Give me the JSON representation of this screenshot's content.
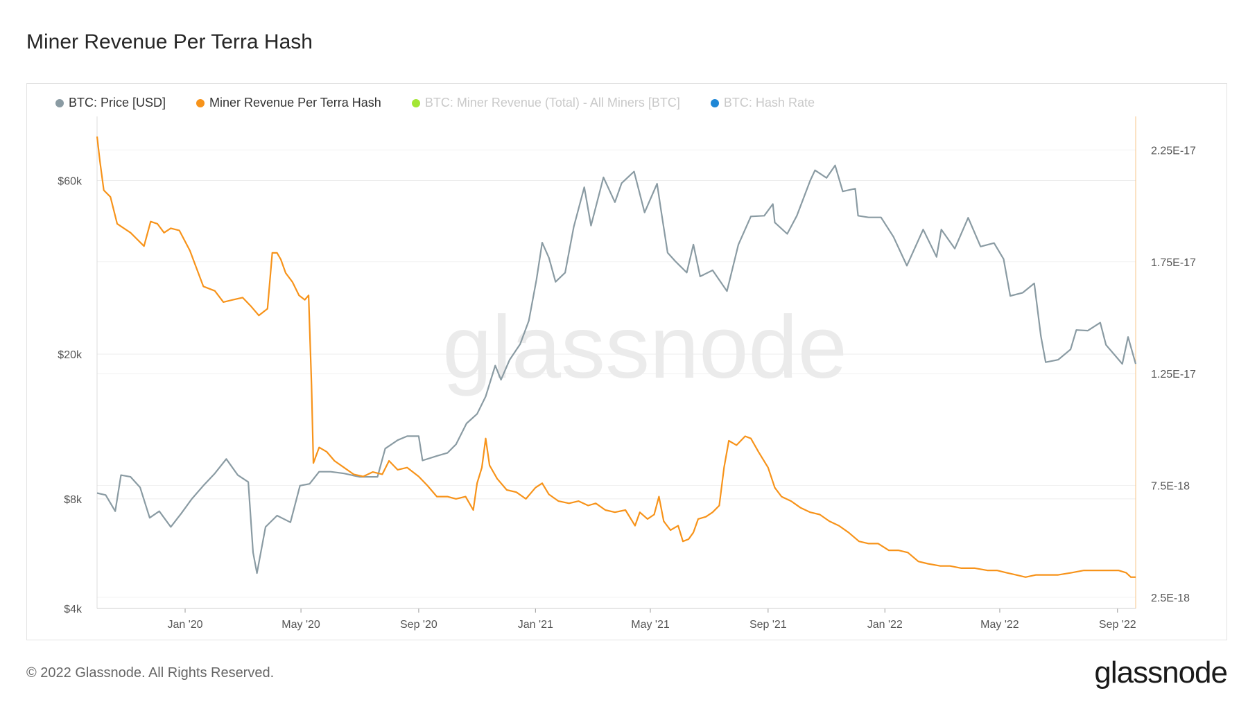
{
  "title": "Miner Revenue Per Terra Hash",
  "footer": {
    "copyright": "© 2022 Glassnode. All Rights Reserved.",
    "logo": "glassnode"
  },
  "watermark": "glassnode",
  "colors": {
    "price": "#8a9ba3",
    "revenue": "#f7931a",
    "total": "#a3e635",
    "hashrate": "#1f87d6"
  },
  "legend": [
    {
      "label": "BTC: Price [USD]",
      "color": "#8a9ba3",
      "active": true
    },
    {
      "label": "Miner Revenue Per Terra Hash",
      "color": "#f7931a",
      "active": true
    },
    {
      "label": "BTC: Miner Revenue (Total) - All Miners [BTC]",
      "color": "#a3e635",
      "active": false
    },
    {
      "label": "BTC: Hash Rate",
      "color": "#1f87d6",
      "active": false
    }
  ],
  "chart_data": {
    "type": "line",
    "x_range": [
      "2019-10-01",
      "2022-09-20"
    ],
    "x_ticks": [
      "Jan '20",
      "May '20",
      "Sep '20",
      "Jan '21",
      "May '21",
      "Sep '21",
      "Jan '22",
      "May '22",
      "Sep '22"
    ],
    "left_axis": {
      "scale": "log",
      "ticks": [
        "$4k",
        "$8k",
        "$20k",
        "$60k"
      ],
      "tick_values": [
        4000,
        8000,
        20000,
        60000
      ],
      "range": [
        4000,
        90000
      ]
    },
    "right_axis": {
      "scale": "linear",
      "ticks": [
        "2.5E-18",
        "7.5E-18",
        "1.25E-17",
        "1.75E-17",
        "2.25E-17"
      ],
      "tick_values": [
        2.5e-18,
        7.5e-18,
        1.25e-17,
        1.75e-17,
        2.25e-17
      ],
      "range": [
        2e-18,
        2.4e-17
      ]
    },
    "grid": true,
    "legend_position": "top-left",
    "series": [
      {
        "name": "BTC: Price [USD]",
        "axis": "left",
        "points": [
          [
            "2019-10-01",
            8300
          ],
          [
            "2019-10-10",
            8200
          ],
          [
            "2019-10-20",
            7400
          ],
          [
            "2019-10-26",
            9300
          ],
          [
            "2019-11-05",
            9200
          ],
          [
            "2019-11-15",
            8600
          ],
          [
            "2019-11-25",
            7100
          ],
          [
            "2019-12-05",
            7400
          ],
          [
            "2019-12-17",
            6700
          ],
          [
            "2019-12-28",
            7300
          ],
          [
            "2020-01-08",
            8000
          ],
          [
            "2020-01-20",
            8700
          ],
          [
            "2020-02-01",
            9400
          ],
          [
            "2020-02-13",
            10300
          ],
          [
            "2020-02-25",
            9300
          ],
          [
            "2020-03-07",
            8900
          ],
          [
            "2020-03-12",
            5700
          ],
          [
            "2020-03-16",
            5000
          ],
          [
            "2020-03-25",
            6700
          ],
          [
            "2020-04-06",
            7200
          ],
          [
            "2020-04-20",
            6900
          ],
          [
            "2020-04-30",
            8700
          ],
          [
            "2020-05-10",
            8800
          ],
          [
            "2020-05-20",
            9500
          ],
          [
            "2020-06-01",
            9500
          ],
          [
            "2020-06-15",
            9400
          ],
          [
            "2020-07-01",
            9200
          ],
          [
            "2020-07-20",
            9200
          ],
          [
            "2020-07-28",
            11000
          ],
          [
            "2020-08-10",
            11600
          ],
          [
            "2020-08-20",
            11900
          ],
          [
            "2020-09-01",
            11900
          ],
          [
            "2020-09-05",
            10200
          ],
          [
            "2020-09-20",
            10500
          ],
          [
            "2020-10-01",
            10700
          ],
          [
            "2020-10-10",
            11300
          ],
          [
            "2020-10-21",
            12900
          ],
          [
            "2020-11-01",
            13700
          ],
          [
            "2020-11-10",
            15300
          ],
          [
            "2020-11-20",
            18600
          ],
          [
            "2020-11-26",
            17000
          ],
          [
            "2020-12-05",
            19300
          ],
          [
            "2020-12-16",
            21300
          ],
          [
            "2020-12-25",
            24700
          ],
          [
            "2021-01-02",
            32000
          ],
          [
            "2021-01-08",
            40500
          ],
          [
            "2021-01-15",
            36800
          ],
          [
            "2021-01-22",
            31600
          ],
          [
            "2021-02-01",
            33500
          ],
          [
            "2021-02-10",
            44800
          ],
          [
            "2021-02-21",
            57500
          ],
          [
            "2021-02-28",
            45100
          ],
          [
            "2021-03-13",
            61200
          ],
          [
            "2021-03-25",
            52300
          ],
          [
            "2021-04-01",
            59000
          ],
          [
            "2021-04-14",
            63500
          ],
          [
            "2021-04-25",
            49000
          ],
          [
            "2021-05-08",
            58800
          ],
          [
            "2021-05-12",
            50000
          ],
          [
            "2021-05-19",
            38000
          ],
          [
            "2021-05-27",
            36000
          ],
          [
            "2021-06-08",
            33500
          ],
          [
            "2021-06-15",
            40000
          ],
          [
            "2021-06-22",
            32700
          ],
          [
            "2021-07-05",
            34000
          ],
          [
            "2021-07-20",
            29800
          ],
          [
            "2021-08-01",
            40000
          ],
          [
            "2021-08-14",
            47800
          ],
          [
            "2021-08-28",
            48000
          ],
          [
            "2021-09-06",
            51700
          ],
          [
            "2021-09-08",
            46000
          ],
          [
            "2021-09-21",
            42800
          ],
          [
            "2021-10-01",
            48000
          ],
          [
            "2021-10-15",
            60000
          ],
          [
            "2021-10-20",
            64000
          ],
          [
            "2021-11-01",
            61000
          ],
          [
            "2021-11-10",
            66000
          ],
          [
            "2021-11-18",
            56000
          ],
          [
            "2021-12-01",
            57000
          ],
          [
            "2021-12-04",
            48000
          ],
          [
            "2021-12-15",
            47500
          ],
          [
            "2021-12-28",
            47500
          ],
          [
            "2022-01-10",
            42000
          ],
          [
            "2022-01-24",
            35000
          ],
          [
            "2022-02-10",
            44000
          ],
          [
            "2022-02-24",
            37000
          ],
          [
            "2022-03-01",
            44000
          ],
          [
            "2022-03-15",
            39000
          ],
          [
            "2022-03-29",
            47400
          ],
          [
            "2022-04-11",
            39500
          ],
          [
            "2022-04-25",
            40400
          ],
          [
            "2022-05-05",
            36500
          ],
          [
            "2022-05-12",
            28900
          ],
          [
            "2022-05-25",
            29500
          ],
          [
            "2022-06-06",
            31300
          ],
          [
            "2022-06-13",
            22400
          ],
          [
            "2022-06-18",
            19000
          ],
          [
            "2022-07-01",
            19300
          ],
          [
            "2022-07-14",
            20600
          ],
          [
            "2022-07-20",
            23300
          ],
          [
            "2022-08-01",
            23200
          ],
          [
            "2022-08-14",
            24400
          ],
          [
            "2022-08-20",
            21200
          ],
          [
            "2022-09-06",
            18800
          ],
          [
            "2022-09-12",
            22300
          ],
          [
            "2022-09-20",
            18800
          ]
        ]
      },
      {
        "name": "Miner Revenue Per Terra Hash",
        "axis": "right",
        "points": [
          [
            "2019-10-01",
            2.31e-17
          ],
          [
            "2019-10-04",
            2.2e-17
          ],
          [
            "2019-10-08",
            2.07e-17
          ],
          [
            "2019-10-15",
            2.04e-17
          ],
          [
            "2019-10-22",
            1.92e-17
          ],
          [
            "2019-10-29",
            1.9e-17
          ],
          [
            "2019-11-05",
            1.88e-17
          ],
          [
            "2019-11-12",
            1.85e-17
          ],
          [
            "2019-11-19",
            1.82e-17
          ],
          [
            "2019-11-26",
            1.93e-17
          ],
          [
            "2019-12-03",
            1.92e-17
          ],
          [
            "2019-12-10",
            1.88e-17
          ],
          [
            "2019-12-17",
            1.9e-17
          ],
          [
            "2019-12-26",
            1.89e-17
          ],
          [
            "2020-01-06",
            1.8e-17
          ],
          [
            "2020-01-13",
            1.72e-17
          ],
          [
            "2020-01-20",
            1.64e-17
          ],
          [
            "2020-02-01",
            1.62e-17
          ],
          [
            "2020-02-10",
            1.57e-17
          ],
          [
            "2020-02-20",
            1.58e-17
          ],
          [
            "2020-03-01",
            1.59e-17
          ],
          [
            "2020-03-10",
            1.55e-17
          ],
          [
            "2020-03-18",
            1.51e-17
          ],
          [
            "2020-03-27",
            1.54e-17
          ],
          [
            "2020-04-01",
            1.79e-17
          ],
          [
            "2020-04-06",
            1.79e-17
          ],
          [
            "2020-04-10",
            1.76e-17
          ],
          [
            "2020-04-15",
            1.7e-17
          ],
          [
            "2020-04-22",
            1.66e-17
          ],
          [
            "2020-04-29",
            1.6e-17
          ],
          [
            "2020-05-05",
            1.58e-17
          ],
          [
            "2020-05-09",
            1.6e-17
          ],
          [
            "2020-05-12",
            1.2e-17
          ],
          [
            "2020-05-14",
            8.5e-18
          ],
          [
            "2020-05-20",
            9.2e-18
          ],
          [
            "2020-05-28",
            9e-18
          ],
          [
            "2020-06-05",
            8.6e-18
          ],
          [
            "2020-06-15",
            8.3e-18
          ],
          [
            "2020-06-25",
            8e-18
          ],
          [
            "2020-07-05",
            7.9e-18
          ],
          [
            "2020-07-15",
            8.1e-18
          ],
          [
            "2020-07-25",
            8e-18
          ],
          [
            "2020-08-01",
            8.6e-18
          ],
          [
            "2020-08-10",
            8.2e-18
          ],
          [
            "2020-08-20",
            8.3e-18
          ],
          [
            "2020-09-01",
            7.9e-18
          ],
          [
            "2020-09-10",
            7.5e-18
          ],
          [
            "2020-09-20",
            7e-18
          ],
          [
            "2020-10-01",
            7e-18
          ],
          [
            "2020-10-10",
            6.9e-18
          ],
          [
            "2020-10-20",
            7e-18
          ],
          [
            "2020-10-28",
            6.4e-18
          ],
          [
            "2020-11-01",
            7.6e-18
          ],
          [
            "2020-11-06",
            8.3e-18
          ],
          [
            "2020-11-10",
            9.6e-18
          ],
          [
            "2020-11-14",
            8.4e-18
          ],
          [
            "2020-11-22",
            7.8e-18
          ],
          [
            "2020-12-02",
            7.3e-18
          ],
          [
            "2020-12-12",
            7.2e-18
          ],
          [
            "2020-12-22",
            6.9e-18
          ],
          [
            "2021-01-01",
            7.4e-18
          ],
          [
            "2021-01-08",
            7.6e-18
          ],
          [
            "2021-01-15",
            7.1e-18
          ],
          [
            "2021-01-25",
            6.8e-18
          ],
          [
            "2021-02-05",
            6.7e-18
          ],
          [
            "2021-02-15",
            6.8e-18
          ],
          [
            "2021-02-25",
            6.6e-18
          ],
          [
            "2021-03-05",
            6.7e-18
          ],
          [
            "2021-03-15",
            6.4e-18
          ],
          [
            "2021-03-25",
            6.3e-18
          ],
          [
            "2021-04-05",
            6.4e-18
          ],
          [
            "2021-04-15",
            5.7e-18
          ],
          [
            "2021-04-20",
            6.3e-18
          ],
          [
            "2021-04-28",
            6e-18
          ],
          [
            "2021-05-05",
            6.2e-18
          ],
          [
            "2021-05-10",
            7e-18
          ],
          [
            "2021-05-15",
            5.9e-18
          ],
          [
            "2021-05-22",
            5.5e-18
          ],
          [
            "2021-05-30",
            5.7e-18
          ],
          [
            "2021-06-04",
            5e-18
          ],
          [
            "2021-06-10",
            5.1e-18
          ],
          [
            "2021-06-15",
            5.4e-18
          ],
          [
            "2021-06-20",
            6e-18
          ],
          [
            "2021-06-28",
            6.1e-18
          ],
          [
            "2021-07-05",
            6.3e-18
          ],
          [
            "2021-07-12",
            6.6e-18
          ],
          [
            "2021-07-17",
            8.3e-18
          ],
          [
            "2021-07-22",
            9.5e-18
          ],
          [
            "2021-07-30",
            9.3e-18
          ],
          [
            "2021-08-08",
            9.7e-18
          ],
          [
            "2021-08-14",
            9.6e-18
          ],
          [
            "2021-08-22",
            9e-18
          ],
          [
            "2021-09-01",
            8.3e-18
          ],
          [
            "2021-09-08",
            7.4e-18
          ],
          [
            "2021-09-15",
            7e-18
          ],
          [
            "2021-09-25",
            6.8e-18
          ],
          [
            "2021-10-05",
            6.5e-18
          ],
          [
            "2021-10-15",
            6.3e-18
          ],
          [
            "2021-10-25",
            6.2e-18
          ],
          [
            "2021-11-04",
            5.9e-18
          ],
          [
            "2021-11-14",
            5.7e-18
          ],
          [
            "2021-11-24",
            5.4e-18
          ],
          [
            "2021-12-05",
            5e-18
          ],
          [
            "2021-12-15",
            4.9e-18
          ],
          [
            "2021-12-25",
            4.9e-18
          ],
          [
            "2022-01-05",
            4.6e-18
          ],
          [
            "2022-01-15",
            4.6e-18
          ],
          [
            "2022-01-25",
            4.5e-18
          ],
          [
            "2022-02-05",
            4.1e-18
          ],
          [
            "2022-02-15",
            4e-18
          ],
          [
            "2022-02-28",
            3.9e-18
          ],
          [
            "2022-03-10",
            3.9e-18
          ],
          [
            "2022-03-22",
            3.8e-18
          ],
          [
            "2022-04-05",
            3.8e-18
          ],
          [
            "2022-04-18",
            3.7e-18
          ],
          [
            "2022-04-28",
            3.7e-18
          ],
          [
            "2022-05-08",
            3.6e-18
          ],
          [
            "2022-05-18",
            3.5e-18
          ],
          [
            "2022-05-28",
            3.4e-18
          ],
          [
            "2022-06-08",
            3.5e-18
          ],
          [
            "2022-06-20",
            3.5e-18
          ],
          [
            "2022-07-01",
            3.5e-18
          ],
          [
            "2022-07-15",
            3.6e-18
          ],
          [
            "2022-07-28",
            3.7e-18
          ],
          [
            "2022-08-10",
            3.7e-18
          ],
          [
            "2022-08-22",
            3.7e-18
          ],
          [
            "2022-09-02",
            3.7e-18
          ],
          [
            "2022-09-10",
            3.6e-18
          ],
          [
            "2022-09-15",
            3.4e-18
          ],
          [
            "2022-09-20",
            3.4e-18
          ]
        ]
      }
    ]
  }
}
